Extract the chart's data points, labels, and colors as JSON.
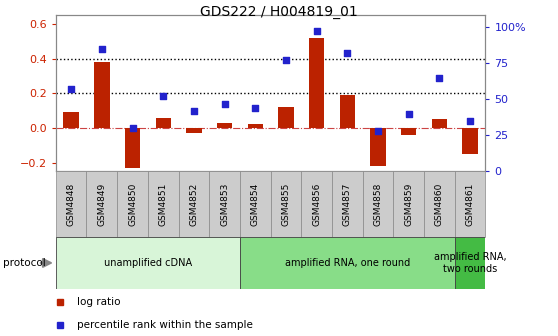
{
  "title": "GDS222 / H004819_01",
  "categories": [
    "GSM4848",
    "GSM4849",
    "GSM4850",
    "GSM4851",
    "GSM4852",
    "GSM4853",
    "GSM4854",
    "GSM4855",
    "GSM4856",
    "GSM4857",
    "GSM4858",
    "GSM4859",
    "GSM4860",
    "GSM4861"
  ],
  "log_ratio": [
    0.09,
    0.38,
    -0.23,
    0.06,
    -0.03,
    0.03,
    0.02,
    0.12,
    0.52,
    0.19,
    -0.22,
    -0.04,
    0.05,
    -0.15
  ],
  "percentile_rank": [
    57,
    85,
    30,
    52,
    42,
    47,
    44,
    77,
    97,
    82,
    28,
    40,
    65,
    35
  ],
  "ylim_left": [
    -0.25,
    0.65
  ],
  "ylim_right": [
    0,
    108.3
  ],
  "yticks_left": [
    -0.2,
    0.0,
    0.2,
    0.4,
    0.6
  ],
  "yticks_right": [
    0,
    25,
    50,
    75,
    100
  ],
  "ytick_labels_right": [
    "0",
    "25",
    "50",
    "75",
    "100%"
  ],
  "hlines": [
    0.4,
    0.2
  ],
  "bar_color": "#bb2200",
  "dot_color": "#2222cc",
  "protocol_groups": [
    {
      "label": "unamplified cDNA",
      "start": 0,
      "end": 5,
      "color": "#d8f5d8"
    },
    {
      "label": "amplified RNA, one round",
      "start": 6,
      "end": 12,
      "color": "#88dd88"
    },
    {
      "label": "amplified RNA,\ntwo rounds",
      "start": 13,
      "end": 13,
      "color": "#44bb44"
    }
  ],
  "protocol_label": "protocol",
  "legend_items": [
    {
      "marker": "s",
      "color": "#bb2200",
      "label": "log ratio"
    },
    {
      "marker": "s",
      "color": "#2222cc",
      "label": "percentile rank within the sample"
    }
  ],
  "dotted_line_color": "#000000",
  "zero_line_color": "#cc4444",
  "tick_label_color_left": "#cc2200",
  "tick_label_color_right": "#2222cc",
  "spine_color": "#888888",
  "xtick_box_color": "#cccccc",
  "xtick_box_edge": "#888888"
}
